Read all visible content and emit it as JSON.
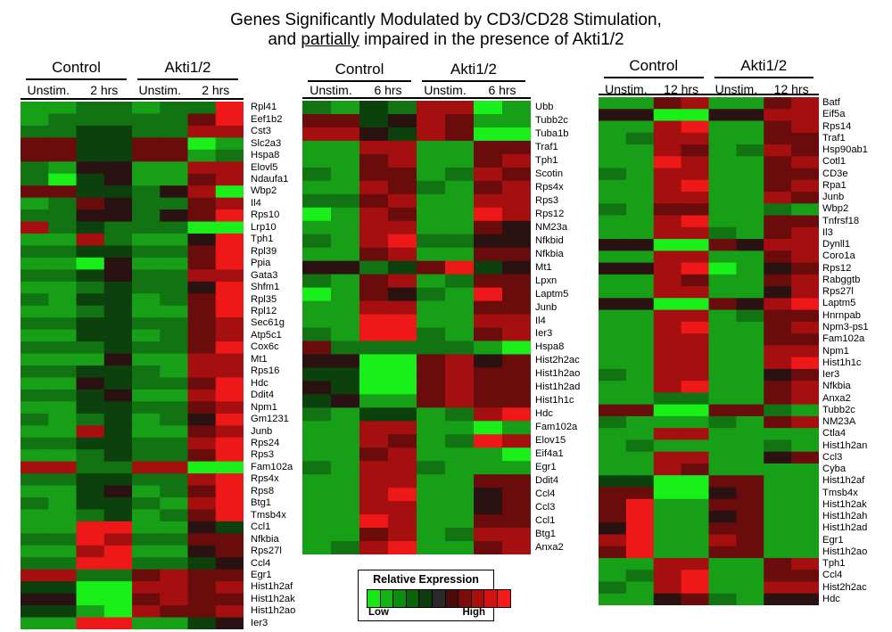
{
  "title_line1": "Genes Significantly Modulated by CD3/CD28 Stimulation,",
  "title_line2_pre": "and ",
  "title_line2_emph": "partially",
  "title_line2_post": " impaired in the presence of Akti1/2",
  "legend": {
    "title": "Relative Expression",
    "low": "Low",
    "high": "High",
    "colors": [
      "#19e619",
      "#14b414",
      "#0f8c0f",
      "#0a640a",
      "#0f3c0f",
      "#2a2a2a",
      "#4a0c0c",
      "#7a0c0c",
      "#a80e0e",
      "#d51212",
      "#f51a1a"
    ]
  },
  "chart_data": [
    {
      "type": "heatmap",
      "time_point": "2 hrs",
      "groups": [
        "Control",
        "Akti1/2"
      ],
      "columns": [
        "Unstim.",
        "2 hrs",
        "Unstim.",
        "2 hrs"
      ],
      "genes": [
        "Rpl41",
        "Eef1b2",
        "Cst3",
        "Slc2a3",
        "Hspa8",
        "Elovl5",
        "Ndaufa1",
        "Wbp2",
        "Il4",
        "Rps10",
        "Lrp10",
        "Tph1",
        "Rpl39",
        "Ppia",
        "Gata3",
        "Shfm1",
        "Rpl35",
        "Rpl12",
        "Sec61g",
        "Atp5c1",
        "Cox6c",
        "Mt1",
        "Rps16",
        "Hdc",
        "Ddit4",
        "Npm1",
        "Gm1231",
        "Junb",
        "Rps24",
        "Rps3",
        "Fam102a",
        "Rps4x",
        "Rps8",
        "Btg1",
        "Tmsb4x",
        "Ccl1",
        "Nfkbia",
        "Rps27l",
        "Ccl4",
        "Egr1",
        "Hist1h2af",
        "Hist1h2ak",
        "Hist1h2ao",
        "Ier3"
      ],
      "values": [
        [
          -3,
          -3,
          -2,
          -2,
          -3,
          -2,
          -2,
          3
        ],
        [
          -3,
          -2,
          -2,
          -2,
          -2,
          -2,
          1,
          3
        ],
        [
          -2,
          -2,
          -1,
          -1,
          -2,
          -2,
          2,
          2
        ],
        [
          1,
          1,
          -1,
          -1,
          1,
          1,
          -4,
          -3
        ],
        [
          1,
          1,
          -1,
          -1,
          1,
          1,
          -3,
          -2
        ],
        [
          -2,
          -3,
          0,
          0,
          -3,
          -3,
          2,
          2
        ],
        [
          -2,
          -4,
          -1,
          0,
          -3,
          -3,
          1,
          2
        ],
        [
          1,
          1,
          -1,
          -1,
          -2,
          0,
          2,
          -4
        ],
        [
          -3,
          -2,
          1,
          0,
          -2,
          -2,
          1,
          2
        ],
        [
          -2,
          -2,
          0,
          0,
          -2,
          0,
          1,
          3
        ],
        [
          2,
          -2,
          -1,
          -2,
          -2,
          -2,
          -4,
          -4
        ],
        [
          -3,
          -3,
          2,
          -2,
          -3,
          -3,
          0,
          3
        ],
        [
          -2,
          -2,
          -1,
          -1,
          -2,
          -2,
          1,
          3
        ],
        [
          -3,
          -3,
          -4,
          0,
          -3,
          -3,
          1,
          3
        ],
        [
          -2,
          -2,
          -1,
          0,
          -2,
          -2,
          2,
          2
        ],
        [
          -3,
          -3,
          -2,
          -1,
          -2,
          -2,
          0,
          3
        ],
        [
          -2,
          -3,
          -1,
          -1,
          -3,
          -2,
          1,
          3
        ],
        [
          -3,
          -3,
          -2,
          -1,
          -3,
          -3,
          1,
          3
        ],
        [
          -2,
          -2,
          -1,
          -1,
          -2,
          -2,
          1,
          2
        ],
        [
          -3,
          -3,
          -1,
          -1,
          -3,
          -2,
          1,
          2
        ],
        [
          -2,
          -2,
          -2,
          -1,
          -2,
          -2,
          1,
          3
        ],
        [
          -3,
          -3,
          -3,
          0,
          -3,
          -3,
          2,
          2
        ],
        [
          -2,
          -2,
          -1,
          -1,
          -2,
          -3,
          2,
          2
        ],
        [
          -3,
          -3,
          0,
          -1,
          -2,
          -2,
          1,
          3
        ],
        [
          -2,
          -2,
          -1,
          0,
          -3,
          -3,
          2,
          3
        ],
        [
          -3,
          -3,
          -1,
          -1,
          -2,
          -2,
          1,
          2
        ],
        [
          -2,
          -3,
          -2,
          -1,
          -3,
          -2,
          0,
          3
        ],
        [
          -3,
          -3,
          2,
          -1,
          -3,
          -3,
          1,
          2
        ],
        [
          -2,
          -2,
          -1,
          -1,
          -2,
          -2,
          2,
          3
        ],
        [
          -3,
          -3,
          -2,
          -1,
          -2,
          -2,
          1,
          3
        ],
        [
          2,
          2,
          -2,
          -2,
          2,
          2,
          -4,
          -4
        ],
        [
          -2,
          -2,
          -1,
          -1,
          -2,
          -2,
          2,
          3
        ],
        [
          -3,
          -3,
          -1,
          0,
          -3,
          -2,
          1,
          3
        ],
        [
          -2,
          -3,
          -1,
          -1,
          -2,
          -3,
          2,
          3
        ],
        [
          -3,
          -3,
          -2,
          -1,
          -3,
          -2,
          1,
          3
        ],
        [
          -3,
          -3,
          3,
          3,
          -3,
          -3,
          0,
          -1
        ],
        [
          -2,
          -2,
          3,
          2,
          -2,
          -2,
          1,
          1
        ],
        [
          -3,
          -3,
          2,
          3,
          -3,
          -3,
          0,
          1
        ],
        [
          -2,
          -2,
          3,
          3,
          -2,
          -2,
          -1,
          0
        ],
        [
          2,
          2,
          -2,
          -2,
          1,
          2,
          1,
          1
        ],
        [
          -1,
          -1,
          -4,
          -4,
          2,
          2,
          1,
          2
        ],
        [
          0,
          0,
          -4,
          -4,
          1,
          2,
          1,
          1
        ],
        [
          -1,
          -1,
          -3,
          -4,
          2,
          1,
          1,
          2
        ],
        [
          -3,
          -3,
          3,
          3,
          -3,
          -3,
          -1,
          0
        ]
      ]
    },
    {
      "type": "heatmap",
      "time_point": "6 hrs",
      "groups": [
        "Control",
        "Akti1/2"
      ],
      "columns": [
        "Unstim.",
        "6 hrs",
        "Unstim.",
        "6 hrs"
      ],
      "genes": [
        "Ubb",
        "Tubb2c",
        "Tuba1b",
        "Traf1",
        "Tph1",
        "Scotin",
        "Rps4x",
        "Rps3",
        "Rps12",
        "NM23a",
        "Nfkbid",
        "Nfkbia",
        "Mt1",
        "Lpxn",
        "Laptm5",
        "Junb",
        "Il4",
        "Ier3",
        "Hspa8",
        "Hist2h2ac",
        "Hist1h2ao",
        "Hist1h2ad",
        "Hist1h1c",
        "Hdc",
        "Fam102a",
        "Elov15",
        "Eif4a1",
        "Egr1",
        "Ddit4",
        "Ccl4",
        "Ccl3",
        "Ccl1",
        "Btg1",
        "Anxa2"
      ],
      "values": [
        [
          -2,
          -3,
          -1,
          -2,
          2,
          2,
          -4,
          -3
        ],
        [
          1,
          1,
          -1,
          0,
          2,
          1,
          -3,
          -3
        ],
        [
          2,
          2,
          0,
          -1,
          2,
          1,
          -4,
          -4
        ],
        [
          -3,
          -3,
          2,
          2,
          -3,
          -3,
          1,
          1
        ],
        [
          -3,
          -3,
          1,
          2,
          -3,
          -3,
          1,
          2
        ],
        [
          -2,
          -3,
          1,
          1,
          -3,
          -2,
          2,
          1
        ],
        [
          -3,
          -3,
          2,
          1,
          -2,
          -3,
          1,
          2
        ],
        [
          -2,
          -2,
          1,
          2,
          -3,
          -3,
          2,
          2
        ],
        [
          -4,
          -3,
          2,
          1,
          -3,
          -3,
          3,
          2
        ],
        [
          -3,
          -3,
          2,
          2,
          -3,
          -3,
          1,
          0
        ],
        [
          -2,
          -3,
          2,
          3,
          -2,
          -2,
          0,
          0
        ],
        [
          -3,
          -3,
          1,
          2,
          -3,
          -3,
          1,
          1
        ],
        [
          0,
          0,
          -2,
          -1,
          1,
          3,
          -1,
          0
        ],
        [
          -2,
          -3,
          1,
          2,
          -3,
          -2,
          1,
          1
        ],
        [
          -4,
          -3,
          1,
          0,
          -2,
          -3,
          3,
          1
        ],
        [
          -3,
          -3,
          2,
          2,
          -3,
          -3,
          1,
          1
        ],
        [
          -3,
          -3,
          3,
          3,
          -3,
          -3,
          2,
          2
        ],
        [
          -2,
          -3,
          3,
          3,
          -2,
          -3,
          1,
          2
        ],
        [
          1,
          -2,
          -2,
          -2,
          -2,
          -2,
          -3,
          -4
        ],
        [
          0,
          0,
          -4,
          -4,
          1,
          2,
          0,
          1
        ],
        [
          -1,
          -1,
          -4,
          -4,
          1,
          2,
          1,
          1
        ],
        [
          0,
          -1,
          -4,
          -4,
          1,
          2,
          1,
          1
        ],
        [
          -1,
          0,
          -3,
          -3,
          1,
          2,
          1,
          1
        ],
        [
          -2,
          -3,
          -1,
          -1,
          -3,
          -2,
          2,
          3
        ],
        [
          -3,
          -3,
          2,
          2,
          -3,
          -3,
          -4,
          -3
        ],
        [
          -3,
          -3,
          2,
          1,
          -3,
          -2,
          3,
          2
        ],
        [
          -3,
          -3,
          1,
          2,
          -3,
          -3,
          -3,
          -4
        ],
        [
          -2,
          -3,
          2,
          2,
          -2,
          -3,
          -3,
          -3
        ],
        [
          -3,
          -3,
          2,
          2,
          -3,
          -3,
          1,
          1
        ],
        [
          -3,
          -3,
          2,
          3,
          -3,
          -3,
          0,
          1
        ],
        [
          -3,
          -3,
          2,
          2,
          -3,
          -3,
          0,
          1
        ],
        [
          -3,
          -3,
          3,
          2,
          -3,
          -3,
          1,
          1
        ],
        [
          -3,
          -3,
          1,
          2,
          -3,
          -2,
          2,
          2
        ],
        [
          -3,
          -2,
          2,
          3,
          -3,
          -3,
          1,
          2
        ]
      ]
    },
    {
      "type": "heatmap",
      "time_point": "12 hrs",
      "groups": [
        "Control",
        "Akti1/2"
      ],
      "columns": [
        "Unstim.",
        "12 hrs",
        "Unstim.",
        "12 hrs"
      ],
      "genes": [
        "Batf",
        "Eif5a",
        "Rps14",
        "Traf1",
        "Hsp90ab1",
        "Cotl1",
        "CD3e",
        "Rpa1",
        "Junb",
        "Wbp2",
        "Tnfrsf18",
        "Il3",
        "Dynll1",
        "Coro1a",
        "Rps12",
        "Rabggtb",
        "Rps27l",
        "Laptm5",
        "Hnrnpab",
        "Npm3-ps1",
        "Fam102a",
        "Npm1",
        "Hist1h1c",
        "Ier3",
        "Nfkbia",
        "Anxa2",
        "Tubb2c",
        "NM23A",
        "Ctla4",
        "Hist1h2an",
        "Ccl3",
        "Cyba",
        "Hist1h2af",
        "Tmsb4x",
        "Hist1h2ak",
        "Hist1h2ah",
        "Hist1h2ad",
        "Egr1",
        "Hist1h2ao",
        "Tph1",
        "Ccl4",
        "Hist2h2ac",
        "Hdc"
      ],
      "values": [
        [
          -3,
          -3,
          1,
          2,
          -3,
          -3,
          1,
          2
        ],
        [
          0,
          0,
          -4,
          -4,
          0,
          0,
          2,
          2
        ],
        [
          -3,
          -3,
          2,
          3,
          -3,
          -3,
          1,
          2
        ],
        [
          -3,
          -2,
          2,
          2,
          -3,
          -3,
          1,
          1
        ],
        [
          -3,
          -3,
          2,
          1,
          -3,
          -2,
          2,
          1
        ],
        [
          -3,
          -3,
          3,
          2,
          -3,
          -3,
          1,
          2
        ],
        [
          -2,
          -3,
          2,
          2,
          -3,
          -3,
          1,
          1
        ],
        [
          -3,
          -3,
          2,
          3,
          -3,
          -3,
          1,
          2
        ],
        [
          -3,
          -3,
          2,
          2,
          -3,
          -3,
          2,
          1
        ],
        [
          -2,
          -3,
          1,
          1,
          -3,
          -3,
          -2,
          -3
        ],
        [
          -3,
          -3,
          2,
          3,
          -3,
          -3,
          1,
          1
        ],
        [
          -3,
          -3,
          2,
          2,
          -2,
          -3,
          1,
          2
        ],
        [
          0,
          0,
          -4,
          -4,
          1,
          0,
          2,
          2
        ],
        [
          -3,
          -3,
          2,
          2,
          -3,
          -3,
          1,
          2
        ],
        [
          0,
          0,
          2,
          3,
          -4,
          -3,
          0,
          1
        ],
        [
          -3,
          -3,
          2,
          1,
          -3,
          -3,
          1,
          2
        ],
        [
          -3,
          -3,
          2,
          2,
          -3,
          -3,
          0,
          2
        ],
        [
          0,
          0,
          -4,
          -4,
          1,
          0,
          2,
          3
        ],
        [
          -3,
          -3,
          2,
          2,
          -3,
          -2,
          1,
          1
        ],
        [
          -3,
          -3,
          2,
          3,
          -3,
          -3,
          1,
          2
        ],
        [
          -3,
          -3,
          2,
          2,
          -3,
          -3,
          1,
          1
        ],
        [
          -3,
          -3,
          2,
          2,
          -3,
          -3,
          2,
          2
        ],
        [
          -3,
          -3,
          2,
          2,
          -3,
          -3,
          2,
          3
        ],
        [
          -2,
          -3,
          2,
          2,
          -3,
          -3,
          0,
          1
        ],
        [
          -3,
          -3,
          2,
          3,
          -3,
          -3,
          1,
          2
        ],
        [
          -3,
          -3,
          -2,
          -2,
          -3,
          -3,
          1,
          2
        ],
        [
          1,
          1,
          -4,
          -4,
          1,
          1,
          -2,
          -3
        ],
        [
          -2,
          -3,
          -3,
          -3,
          -2,
          -3,
          1,
          2
        ],
        [
          -3,
          -3,
          2,
          2,
          -3,
          -3,
          -3,
          -3
        ],
        [
          -3,
          -2,
          -3,
          -3,
          -3,
          -3,
          -2,
          -3
        ],
        [
          -3,
          -3,
          2,
          2,
          -3,
          -3,
          0,
          1
        ],
        [
          -3,
          -3,
          2,
          1,
          -3,
          -3,
          -3,
          -3
        ],
        [
          -1,
          -1,
          -4,
          -4,
          1,
          1,
          -3,
          -3
        ],
        [
          1,
          1,
          -4,
          -4,
          0,
          1,
          -3,
          -3
        ],
        [
          1,
          3,
          -3,
          -3,
          1,
          1,
          -3,
          -3
        ],
        [
          1,
          3,
          -3,
          -3,
          0,
          1,
          -3,
          -3
        ],
        [
          0,
          3,
          -3,
          -3,
          1,
          1,
          -3,
          -3
        ],
        [
          2,
          3,
          -3,
          -3,
          2,
          1,
          -3,
          -3
        ],
        [
          1,
          3,
          -3,
          -3,
          1,
          1,
          -3,
          -3
        ],
        [
          -3,
          -3,
          2,
          2,
          -3,
          -3,
          1,
          2
        ],
        [
          -3,
          -2,
          2,
          3,
          -3,
          -3,
          1,
          1
        ],
        [
          -2,
          -3,
          2,
          3,
          -3,
          -3,
          2,
          2
        ],
        [
          -3,
          -3,
          0,
          1,
          -2,
          -3,
          0,
          0
        ]
      ]
    }
  ]
}
